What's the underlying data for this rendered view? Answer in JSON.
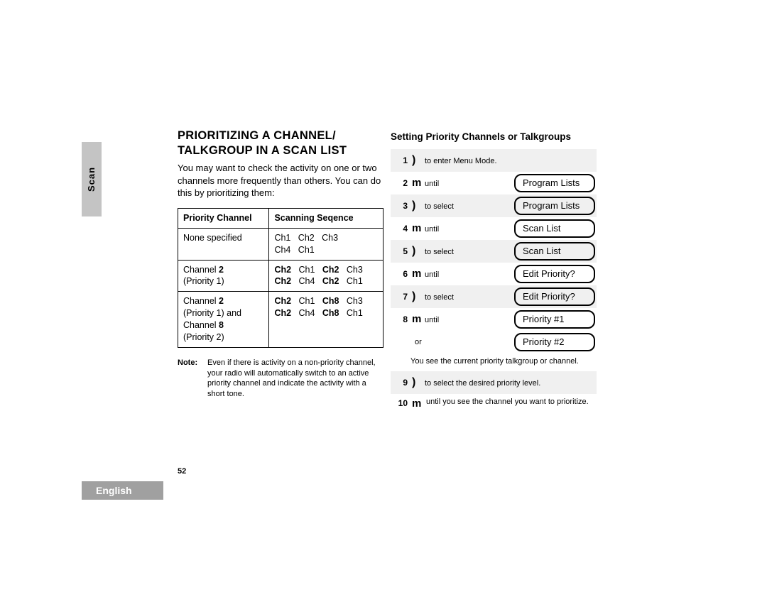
{
  "tabs": {
    "scan": "Scan",
    "english": "English"
  },
  "page_number": "52",
  "left": {
    "title_l1": "PRIORITIZING A CHANNEL/",
    "title_l2": "TALKGROUP IN A SCAN LIST",
    "intro": "You may want to check the activity on one or two channels more frequently than others. You can do this by prioritizing them:",
    "table": {
      "header": {
        "c1": "Priority Channel",
        "c2": "Scanning Seqence"
      },
      "rows": [
        {
          "c1": "None specified",
          "c2_lines": [
            [
              {
                "t": "Ch1",
                "b": false
              },
              {
                "t": "Ch2",
                "b": false
              },
              {
                "t": "Ch3",
                "b": false
              }
            ],
            [
              {
                "t": "Ch4",
                "b": false
              },
              {
                "t": "Ch1",
                "b": false
              }
            ]
          ]
        },
        {
          "c1_html": "Channel <b>2</b><br>(Priority 1)",
          "c2_lines": [
            [
              {
                "t": "Ch2",
                "b": true
              },
              {
                "t": "Ch1",
                "b": false
              },
              {
                "t": "Ch2",
                "b": true
              },
              {
                "t": "Ch3",
                "b": false
              }
            ],
            [
              {
                "t": "Ch2",
                "b": true
              },
              {
                "t": "Ch4",
                "b": false
              },
              {
                "t": "Ch2",
                "b": true
              },
              {
                "t": "Ch1",
                "b": false
              }
            ]
          ]
        },
        {
          "c1_html": "Channel <b>2</b><br>(Priority 1) and<br>Channel <b>8</b><br>(Priority 2)",
          "c2_lines": [
            [
              {
                "t": "Ch2",
                "b": true
              },
              {
                "t": "Ch1",
                "b": false
              },
              {
                "t": "Ch8",
                "b": true
              },
              {
                "t": "Ch3",
                "b": false
              }
            ],
            [
              {
                "t": "Ch2",
                "b": true
              },
              {
                "t": "Ch4",
                "b": false
              },
              {
                "t": "Ch8",
                "b": true
              },
              {
                "t": "Ch1",
                "b": false
              }
            ]
          ]
        }
      ]
    },
    "note_label": "Note:",
    "note_text": "Even if there is activity on a non-priority channel, your radio will automatically switch to an active priority channel and indicate the activity with a short tone."
  },
  "right": {
    "section_title": "Setting Priority Channels or Talkgroups",
    "steps": [
      {
        "n": "1",
        "shaded": true,
        "icon": ")",
        "text": "to enter Menu Mode."
      },
      {
        "n": "2",
        "shaded": false,
        "icon": "m",
        "text": "until",
        "display": "Program Lists"
      },
      {
        "n": "3",
        "shaded": true,
        "icon": ")",
        "text": "to select",
        "display": "Program Lists"
      },
      {
        "n": "4",
        "shaded": false,
        "icon": "m",
        "text": "until",
        "display": "Scan List"
      },
      {
        "n": "5",
        "shaded": true,
        "icon": ")",
        "text": "to select",
        "display": "Scan List"
      },
      {
        "n": "6",
        "shaded": false,
        "icon": "m",
        "text": "until",
        "display": "Edit Priority?"
      },
      {
        "n": "7",
        "shaded": true,
        "icon": ")",
        "text": "to select",
        "display": "Edit Priority?"
      },
      {
        "n": "8",
        "shaded": false,
        "icon": "m",
        "text": "until",
        "display": "Priority #1",
        "or_display": "Priority #2",
        "helper": "You see the current priority talkgroup or channel."
      },
      {
        "n": "9",
        "shaded": true,
        "icon": ")",
        "text": "to select the desired priority level."
      },
      {
        "n": "10",
        "shaded": false,
        "icon": "m",
        "text10": "until you see the channel you want to prioritize."
      }
    ],
    "or_label": "or"
  }
}
